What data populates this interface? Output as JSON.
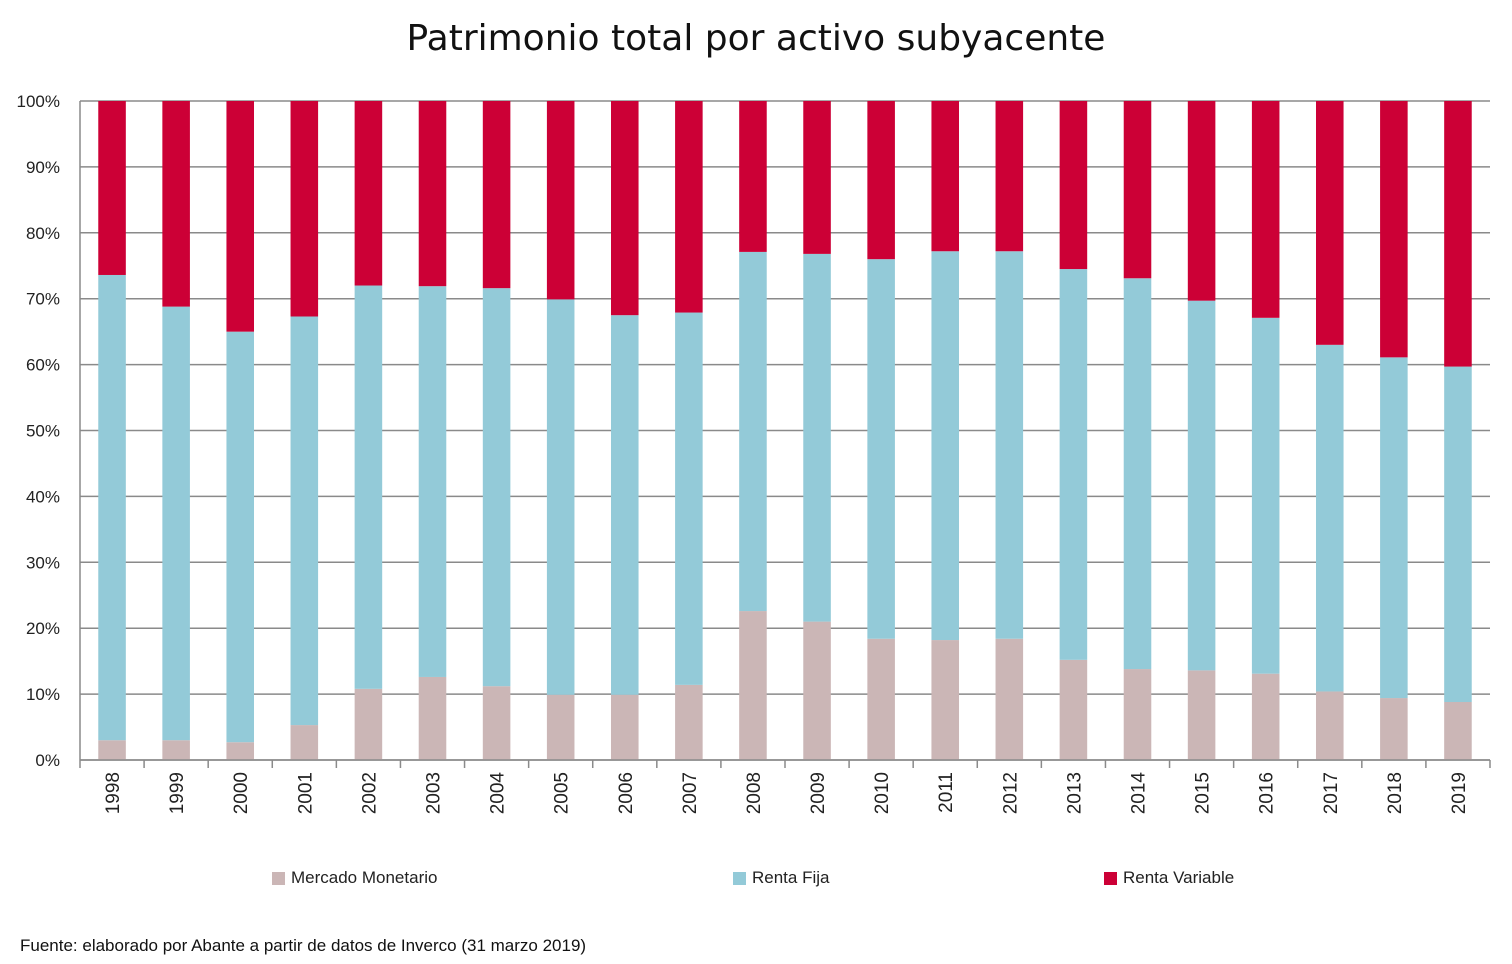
{
  "chart_data": {
    "type": "bar",
    "stacked": true,
    "title": "Patrimonio total por activo subyacente",
    "xlabel": "",
    "ylabel": "",
    "ylim": [
      0,
      100
    ],
    "yticks": [
      "0%",
      "10%",
      "20%",
      "30%",
      "40%",
      "50%",
      "60%",
      "70%",
      "80%",
      "90%",
      "100%"
    ],
    "grid": true,
    "legend_position": "bottom",
    "categories": [
      "1998",
      "1999",
      "2000",
      "2001",
      "2002",
      "2003",
      "2004",
      "2005",
      "2006",
      "2007",
      "2008",
      "2009",
      "2010",
      "2011",
      "2012",
      "2013",
      "2014",
      "2015",
      "2016",
      "2017",
      "2018",
      "2019"
    ],
    "series": [
      {
        "name": "Mercado Monetario",
        "color": "#cbb6b6",
        "values": [
          3.0,
          3.0,
          2.7,
          5.3,
          10.8,
          12.6,
          11.2,
          9.9,
          9.9,
          11.4,
          22.6,
          21.0,
          18.4,
          18.2,
          18.4,
          15.2,
          13.8,
          13.6,
          13.1,
          10.4,
          9.4,
          8.8
        ]
      },
      {
        "name": "Renta Fija",
        "color": "#93cad8",
        "values": [
          70.6,
          65.8,
          62.3,
          62.0,
          61.2,
          59.3,
          60.4,
          60.0,
          57.6,
          56.5,
          54.5,
          55.8,
          57.6,
          59.0,
          58.8,
          59.3,
          59.3,
          56.1,
          54.0,
          52.6,
          51.7,
          50.9
        ]
      },
      {
        "name": "Renta Variable",
        "color": "#cc0036",
        "values": [
          26.4,
          31.2,
          35.0,
          32.7,
          28.0,
          28.1,
          28.4,
          30.1,
          32.5,
          32.1,
          22.9,
          23.2,
          24.0,
          22.8,
          22.8,
          25.5,
          26.9,
          30.3,
          32.9,
          37.0,
          38.9,
          40.3
        ]
      }
    ]
  },
  "footer": {
    "source": "Fuente: elaborado por Abante a partir de datos de Inverco (31 marzo 2019)"
  }
}
